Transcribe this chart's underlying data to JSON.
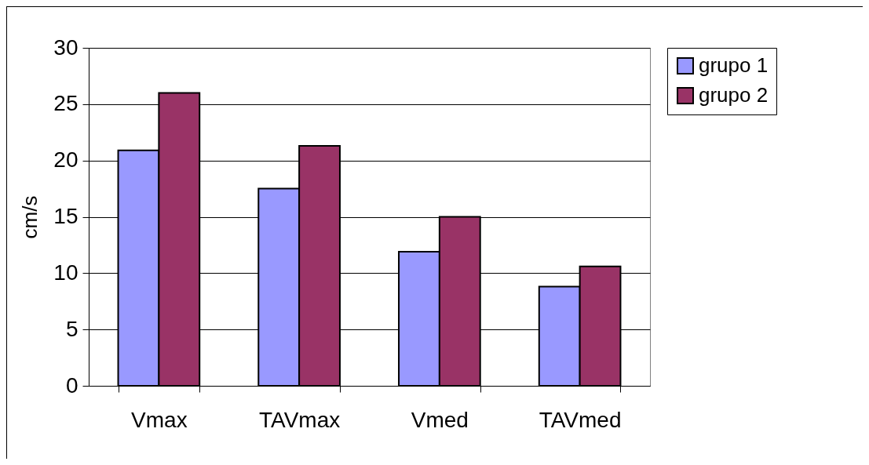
{
  "chart_data": {
    "type": "bar",
    "ylabel": "cm/s",
    "categories": [
      "Vmax",
      "TAVmax",
      "Vmed",
      "TAVmed"
    ],
    "series": [
      {
        "name": "grupo 1",
        "color": "#9999ff",
        "values": [
          20.9,
          17.5,
          11.9,
          8.8
        ]
      },
      {
        "name": "grupo 2",
        "color": "#993366",
        "values": [
          26.0,
          21.3,
          15.0,
          10.6
        ]
      }
    ],
    "ylim": [
      0,
      30
    ],
    "yticks": [
      0,
      5,
      10,
      15,
      20,
      25,
      30
    ],
    "grid": "y",
    "legend": "right"
  }
}
